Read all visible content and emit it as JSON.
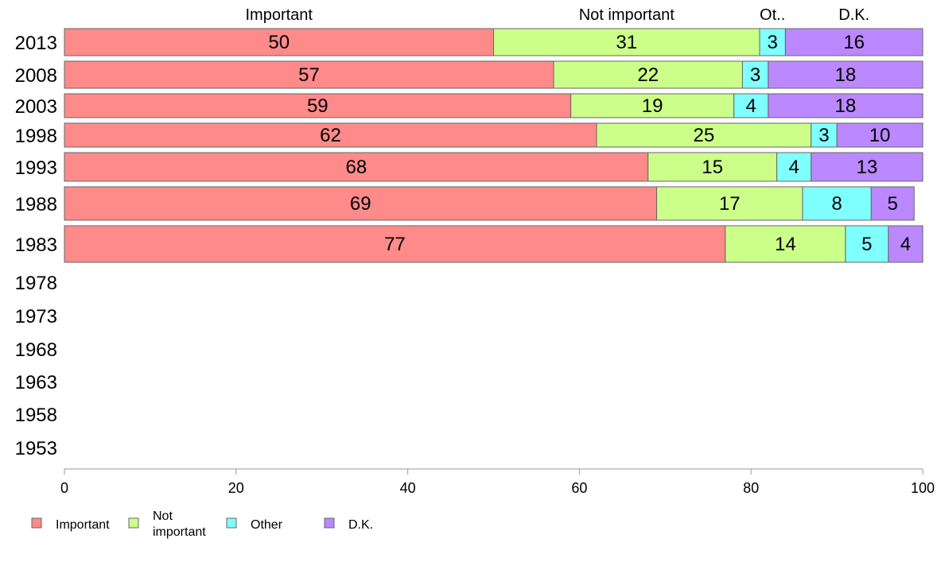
{
  "chart_data": {
    "type": "bar",
    "orientation": "horizontal",
    "stacked": true,
    "categories": [
      "2013",
      "2008",
      "2003",
      "1998",
      "1993",
      "1988",
      "1983",
      "1978",
      "1973",
      "1968",
      "1963",
      "1958",
      "1953"
    ],
    "series": [
      {
        "name": "Important",
        "color": "#ff8a8a",
        "values": [
          50,
          57,
          59,
          62,
          68,
          69,
          77,
          null,
          null,
          null,
          null,
          null,
          null
        ]
      },
      {
        "name": "Not important",
        "color": "#ccff8a",
        "values": [
          31,
          22,
          19,
          25,
          15,
          17,
          14,
          null,
          null,
          null,
          null,
          null,
          null
        ]
      },
      {
        "name": "Other",
        "color": "#80ffff",
        "values": [
          3,
          3,
          4,
          3,
          4,
          8,
          5,
          null,
          null,
          null,
          null,
          null,
          null
        ]
      },
      {
        "name": "D.K.",
        "color": "#bb88ff",
        "values": [
          16,
          18,
          18,
          10,
          13,
          5,
          4,
          null,
          null,
          null,
          null,
          null,
          null
        ]
      }
    ],
    "column_headers": [
      "Important",
      "Not important",
      "Ot..",
      "D.K."
    ],
    "legend_labels": [
      "Important",
      "Not\nimportant",
      "Other",
      "D.K."
    ],
    "xlim": [
      0,
      100
    ],
    "xticks": [
      0,
      20,
      40,
      60,
      80,
      100
    ],
    "grid": false,
    "legend_position": "bottom-left"
  }
}
